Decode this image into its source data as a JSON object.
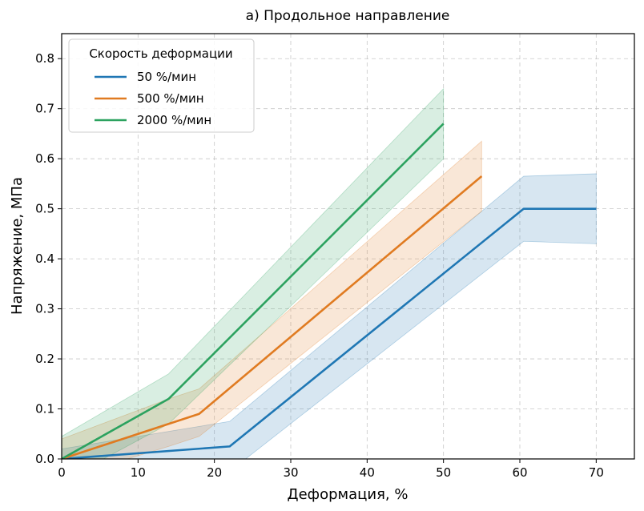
{
  "chart_data": {
    "type": "line",
    "title": "а) Продольное направление",
    "xlabel": "Деформация, %",
    "ylabel": "Напряжение, МПа",
    "xlim": [
      0,
      75
    ],
    "ylim": [
      0,
      0.85
    ],
    "xticks": [
      0,
      10,
      20,
      30,
      40,
      50,
      60,
      70
    ],
    "yticks": [
      0.0,
      0.1,
      0.2,
      0.3,
      0.4,
      0.5,
      0.6,
      0.7,
      0.8
    ],
    "xtick_labels": [
      "0",
      "10",
      "20",
      "30",
      "40",
      "50",
      "60",
      "70"
    ],
    "ytick_labels": [
      "0.0",
      "0.1",
      "0.2",
      "0.3",
      "0.4",
      "0.5",
      "0.6",
      "0.7",
      "0.8"
    ],
    "grid": true,
    "legend": {
      "title": "Скорость деформации",
      "position": "top-left"
    },
    "series": [
      {
        "name": "50 %/мин",
        "color": "#1f77b4",
        "x": [
          0,
          22,
          60.5,
          70
        ],
        "y": [
          0,
          0.025,
          0.5,
          0.5
        ],
        "band_upper": [
          0.02,
          0.075,
          0.565,
          0.57
        ],
        "band_lower": [
          -0.02,
          -0.025,
          0.435,
          0.43
        ]
      },
      {
        "name": "500 %/мин",
        "color": "#e07b21",
        "x": [
          0,
          14,
          18,
          55
        ],
        "y": [
          0,
          0.07,
          0.09,
          0.565
        ],
        "band_upper": [
          0.04,
          0.12,
          0.14,
          0.635
        ],
        "band_lower": [
          -0.04,
          0.025,
          0.045,
          0.495
        ]
      },
      {
        "name": "2000 %/мин",
        "color": "#2ca25f",
        "x": [
          0,
          14,
          50
        ],
        "y": [
          0,
          0.12,
          0.67
        ],
        "band_upper": [
          0.045,
          0.17,
          0.74
        ],
        "band_lower": [
          -0.045,
          0.07,
          0.6
        ]
      }
    ]
  }
}
